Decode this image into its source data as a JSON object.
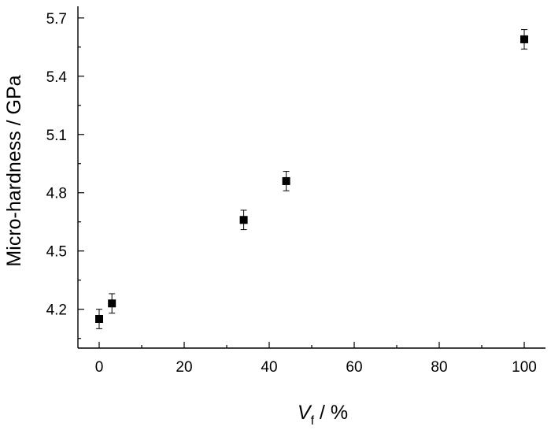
{
  "chart_data": {
    "type": "scatter",
    "title": "",
    "xlabel_main": "V",
    "xlabel_sub": "f",
    "xlabel_rest": " / %",
    "ylabel": "Micro-hardness / GPa",
    "xlim": [
      -5,
      105
    ],
    "ylim": [
      4.0,
      5.76
    ],
    "xticks": [
      0,
      20,
      40,
      60,
      80,
      100
    ],
    "yticks": [
      4.2,
      4.5,
      4.8,
      5.1,
      5.4,
      5.7
    ],
    "xtick_labels": [
      "0",
      "20",
      "40",
      "60",
      "80",
      "100"
    ],
    "ytick_labels": [
      "4.2",
      "4.5",
      "4.8",
      "5.1",
      "5.4",
      "5.7"
    ],
    "x_minor_step": 10,
    "y_minor_step": 0.15,
    "grid": false,
    "legend": "none",
    "marker": "square",
    "marker_color": "#000000",
    "points": [
      {
        "x": 0,
        "y": 4.15,
        "err": 0.05
      },
      {
        "x": 3,
        "y": 4.23,
        "err": 0.05
      },
      {
        "x": 34,
        "y": 4.66,
        "err": 0.05
      },
      {
        "x": 44,
        "y": 4.86,
        "err": 0.05
      },
      {
        "x": 100,
        "y": 5.59,
        "err": 0.05
      }
    ]
  }
}
